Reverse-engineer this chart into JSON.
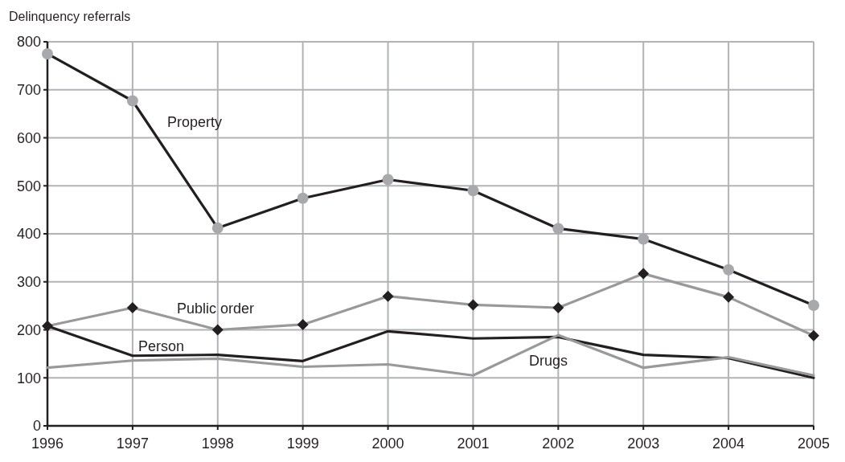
{
  "chart_data": {
    "type": "line",
    "ylabel": "Delinquency referrals",
    "x": [
      1996,
      1997,
      1998,
      1999,
      2000,
      2001,
      2002,
      2003,
      2004,
      2005
    ],
    "xlim": [
      1996,
      2005
    ],
    "xticks": [
      1996,
      1997,
      1998,
      1999,
      2000,
      2001,
      2002,
      2003,
      2004,
      2005
    ],
    "ylim": [
      0,
      800
    ],
    "yticks": [
      0,
      100,
      200,
      300,
      400,
      500,
      600,
      700,
      800
    ],
    "grid": true,
    "series": [
      {
        "name": "Property",
        "color": "#231f20",
        "marker": "circle",
        "values": [
          775,
          677,
          412,
          474,
          513,
          490,
          411,
          389,
          325,
          251
        ]
      },
      {
        "name": "Public order",
        "color": "#999999",
        "marker": "diamond",
        "values": [
          208,
          246,
          200,
          211,
          270,
          252,
          246,
          317,
          268,
          188
        ]
      },
      {
        "name": "Person",
        "color": "#231f20",
        "marker": "none",
        "values": [
          208,
          146,
          148,
          135,
          197,
          182,
          185,
          148,
          141,
          100
        ]
      },
      {
        "name": "Drugs",
        "color": "#999999",
        "marker": "none",
        "values": [
          121,
          136,
          140,
          123,
          128,
          105,
          189,
          121,
          143,
          105
        ]
      }
    ]
  }
}
